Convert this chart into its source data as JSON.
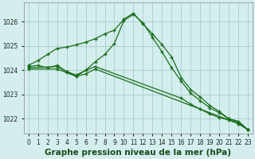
{
  "title": "Graphe pression niveau de la mer (hPa)",
  "bg_color": "#d4eeee",
  "grid_color": "#aacccc",
  "line_color": "#1a6e1a",
  "x_min": -0.5,
  "x_max": 23.5,
  "y_min": 1021.4,
  "y_max": 1026.8,
  "yticks": [
    1022,
    1023,
    1024,
    1025,
    1026
  ],
  "xticks": [
    0,
    1,
    2,
    3,
    4,
    5,
    6,
    7,
    8,
    9,
    10,
    11,
    12,
    13,
    14,
    15,
    16,
    17,
    18,
    19,
    20,
    21,
    22,
    23
  ],
  "tick_fontsize": 5.5,
  "xlabel_fontsize": 7.5,
  "series1_x": [
    0,
    1,
    2,
    3,
    4,
    5,
    6,
    7,
    8,
    9,
    10,
    11,
    12,
    13,
    14,
    15,
    16,
    17,
    18,
    19,
    20,
    21,
    22,
    23
  ],
  "series1_y": [
    1024.2,
    1024.4,
    1024.65,
    1024.9,
    1024.95,
    1025.05,
    1025.15,
    1025.3,
    1025.5,
    1025.65,
    1026.1,
    1026.35,
    1025.9,
    1025.5,
    1025.05,
    1024.55,
    1023.7,
    1023.2,
    1022.9,
    1022.55,
    1022.3,
    1022.0,
    1021.9,
    1021.55
  ],
  "series2_x": [
    0,
    1,
    2,
    3,
    4,
    5,
    6,
    7,
    8,
    9,
    10,
    11,
    12,
    13,
    14,
    15,
    16,
    17,
    18,
    19,
    20,
    21,
    22,
    23
  ],
  "series2_y": [
    1024.15,
    1024.2,
    1024.1,
    1024.2,
    1023.95,
    1023.8,
    1024.0,
    1024.35,
    1024.65,
    1025.1,
    1026.05,
    1026.3,
    1025.95,
    1025.35,
    1024.75,
    1024.1,
    1023.55,
    1023.05,
    1022.75,
    1022.45,
    1022.25,
    1022.0,
    1021.85,
    1021.55
  ],
  "series3_x": [
    0,
    3,
    4,
    5,
    6,
    7,
    16,
    17,
    18,
    19,
    20,
    21,
    22,
    23
  ],
  "series3_y": [
    1024.1,
    1024.15,
    1023.95,
    1023.75,
    1024.0,
    1024.15,
    1022.85,
    1022.6,
    1022.4,
    1022.2,
    1022.05,
    1021.95,
    1021.8,
    1021.55
  ],
  "series4_x": [
    0,
    3,
    4,
    5,
    6,
    7,
    22,
    23
  ],
  "series4_y": [
    1024.05,
    1024.05,
    1023.9,
    1023.75,
    1023.85,
    1024.05,
    1021.8,
    1021.55
  ]
}
